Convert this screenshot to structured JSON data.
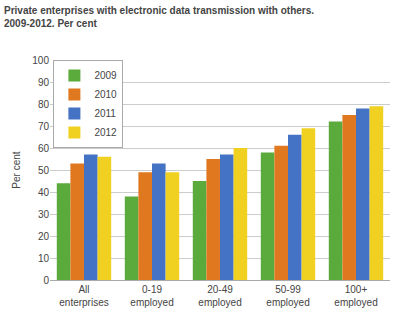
{
  "chart_data": {
    "type": "bar",
    "title": "Private enterprises with electronic data transmission with others.",
    "subtitle": "2009-2012. Per cent",
    "ylabel": "Per cent",
    "categories": [
      "All\nenterprises",
      "0-19\nemployed",
      "20-49\nemployed",
      "50-99\nemployed",
      "100+\nemployed"
    ],
    "series": [
      {
        "name": "2009",
        "color": "#5aaa3c",
        "values": [
          44,
          38,
          45,
          58,
          72
        ]
      },
      {
        "name": "2010",
        "color": "#e07820",
        "values": [
          53,
          49,
          55,
          61,
          75
        ]
      },
      {
        "name": "2011",
        "color": "#4472c4",
        "values": [
          57,
          53,
          57,
          66,
          78
        ]
      },
      {
        "name": "2012",
        "color": "#f0d020",
        "values": [
          56,
          49,
          60,
          69,
          79
        ]
      }
    ],
    "ylim": [
      0,
      100
    ],
    "yticks": [
      0,
      10,
      20,
      30,
      40,
      50,
      60,
      70,
      80,
      90,
      100
    ],
    "grid": true,
    "legend": "upper left"
  }
}
